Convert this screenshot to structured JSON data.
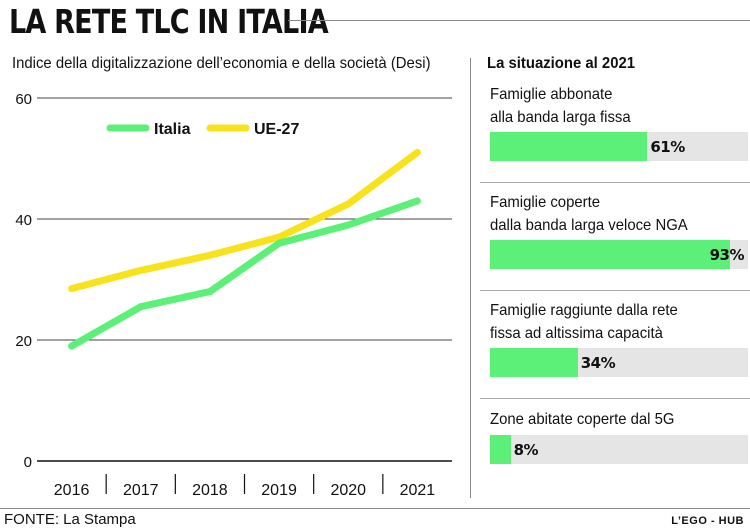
{
  "header": {
    "title": "LA RETE TLC IN ITALIA",
    "subtitle": "Indice della digitalizzazione dell’economia e della società (Desi)"
  },
  "chart_data": {
    "type": "line",
    "title": "Indice della digitalizzazione dell’economia e della società (Desi)",
    "categories": [
      "2016",
      "2017",
      "2018",
      "2019",
      "2020",
      "2021"
    ],
    "series": [
      {
        "name": "Italia",
        "color": "#5cf078",
        "values": [
          19,
          25.5,
          28,
          36,
          39,
          43
        ]
      },
      {
        "name": "UE-27",
        "color": "#f7e21b",
        "values": [
          28.5,
          31.5,
          34,
          37,
          42.5,
          51
        ]
      }
    ],
    "yticks": [
      0,
      20,
      40,
      60
    ],
    "ylim": [
      0,
      60
    ],
    "xlabel": "",
    "ylabel": "",
    "legend": "top-left"
  },
  "panel": {
    "title": "La situazione al 2021",
    "items": [
      {
        "line1": "Famiglie abbonate",
        "line2": "alla banda larga fissa",
        "value": 61,
        "label": "61%"
      },
      {
        "line1": "Famiglie coperte",
        "line2": "dalla banda larga veloce NGA",
        "value": 93,
        "label": "93%"
      },
      {
        "line1": "Famiglie raggiunte dalla rete",
        "line2": "fissa ad altissima capacità",
        "value": 34,
        "label": "34%"
      },
      {
        "line1": "Zone abitate coperte dal 5G",
        "line2": "",
        "value": 8,
        "label": "8%"
      }
    ]
  },
  "colors": {
    "bar_fill": "#5cf078",
    "bar_track": "#e5e5e5"
  },
  "footer": {
    "source": "FONTE: La Stampa",
    "credit": "L’EGO - HUB"
  }
}
